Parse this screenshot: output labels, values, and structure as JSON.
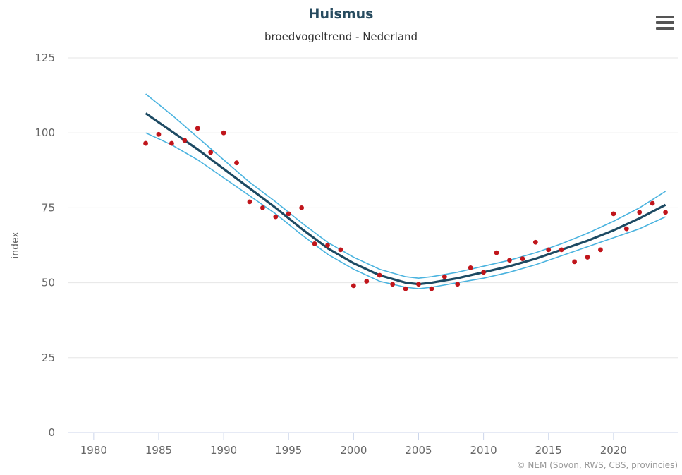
{
  "chart_data": {
    "type": "line",
    "title": "Huismus",
    "subtitle": "broedvogeltrend - Nederland",
    "ylabel": "index",
    "xlabel": "",
    "xlim": [
      1978,
      2025
    ],
    "ylim": [
      0,
      125
    ],
    "xticks": [
      1980,
      1985,
      1990,
      1995,
      2000,
      2005,
      2010,
      2015,
      2020
    ],
    "yticks": [
      0,
      25,
      50,
      75,
      100,
      125
    ],
    "grid": "horizontal",
    "legend": "none",
    "trend": {
      "x": [
        1984,
        1986,
        1988,
        1990,
        1992,
        1994,
        1996,
        1998,
        2000,
        2002,
        2004,
        2005,
        2006,
        2008,
        2010,
        2012,
        2014,
        2016,
        2018,
        2020,
        2022,
        2024
      ],
      "mid": [
        106.5,
        100.5,
        94.5,
        88,
        81.5,
        75,
        68,
        61.5,
        56.5,
        52.5,
        50,
        49.5,
        50,
        51.5,
        53.5,
        55.5,
        58,
        61,
        64,
        67.5,
        71.5,
        76
      ],
      "upper": [
        113,
        106,
        98.5,
        91,
        83.5,
        77,
        70,
        63.5,
        58.5,
        54.5,
        52,
        51.5,
        52,
        53.5,
        55.5,
        57.5,
        60,
        63,
        66.5,
        70.5,
        75,
        80.5
      ],
      "lower": [
        100,
        96,
        91,
        85,
        79,
        73,
        66,
        59.5,
        54.5,
        50.5,
        48.5,
        48,
        48.5,
        50,
        51.5,
        53.5,
        56,
        59,
        62,
        65,
        68,
        72
      ]
    },
    "points": {
      "x": [
        1984,
        1985,
        1986,
        1987,
        1988,
        1989,
        1990,
        1991,
        1992,
        1993,
        1994,
        1995,
        1996,
        1997,
        1998,
        1999,
        2000,
        2001,
        2002,
        2003,
        2004,
        2005,
        2006,
        2007,
        2008,
        2009,
        2010,
        2011,
        2012,
        2013,
        2014,
        2015,
        2016,
        2017,
        2018,
        2019,
        2020,
        2021,
        2022,
        2023,
        2024
      ],
      "y": [
        96.5,
        99.5,
        96.5,
        97.5,
        101.5,
        93.5,
        100,
        90,
        77,
        75,
        72,
        73,
        75,
        63,
        62.5,
        61,
        49,
        50.5,
        52.5,
        49.5,
        48,
        49.5,
        48,
        52,
        49.5,
        55,
        53.5,
        60,
        57.5,
        58,
        63.5,
        61,
        61,
        57,
        58.5,
        61,
        73,
        68,
        73.5,
        76.5,
        73.5
      ]
    },
    "colors": {
      "trend": "#1d4a63",
      "band": "#4ab3df",
      "points": "#c0151b",
      "grid": "#e6e6e6",
      "title": "#274b5f"
    }
  },
  "credits": "© NEM (Sovon, RWS, CBS, provincies)",
  "menu_icon": "hamburger-menu-icon"
}
